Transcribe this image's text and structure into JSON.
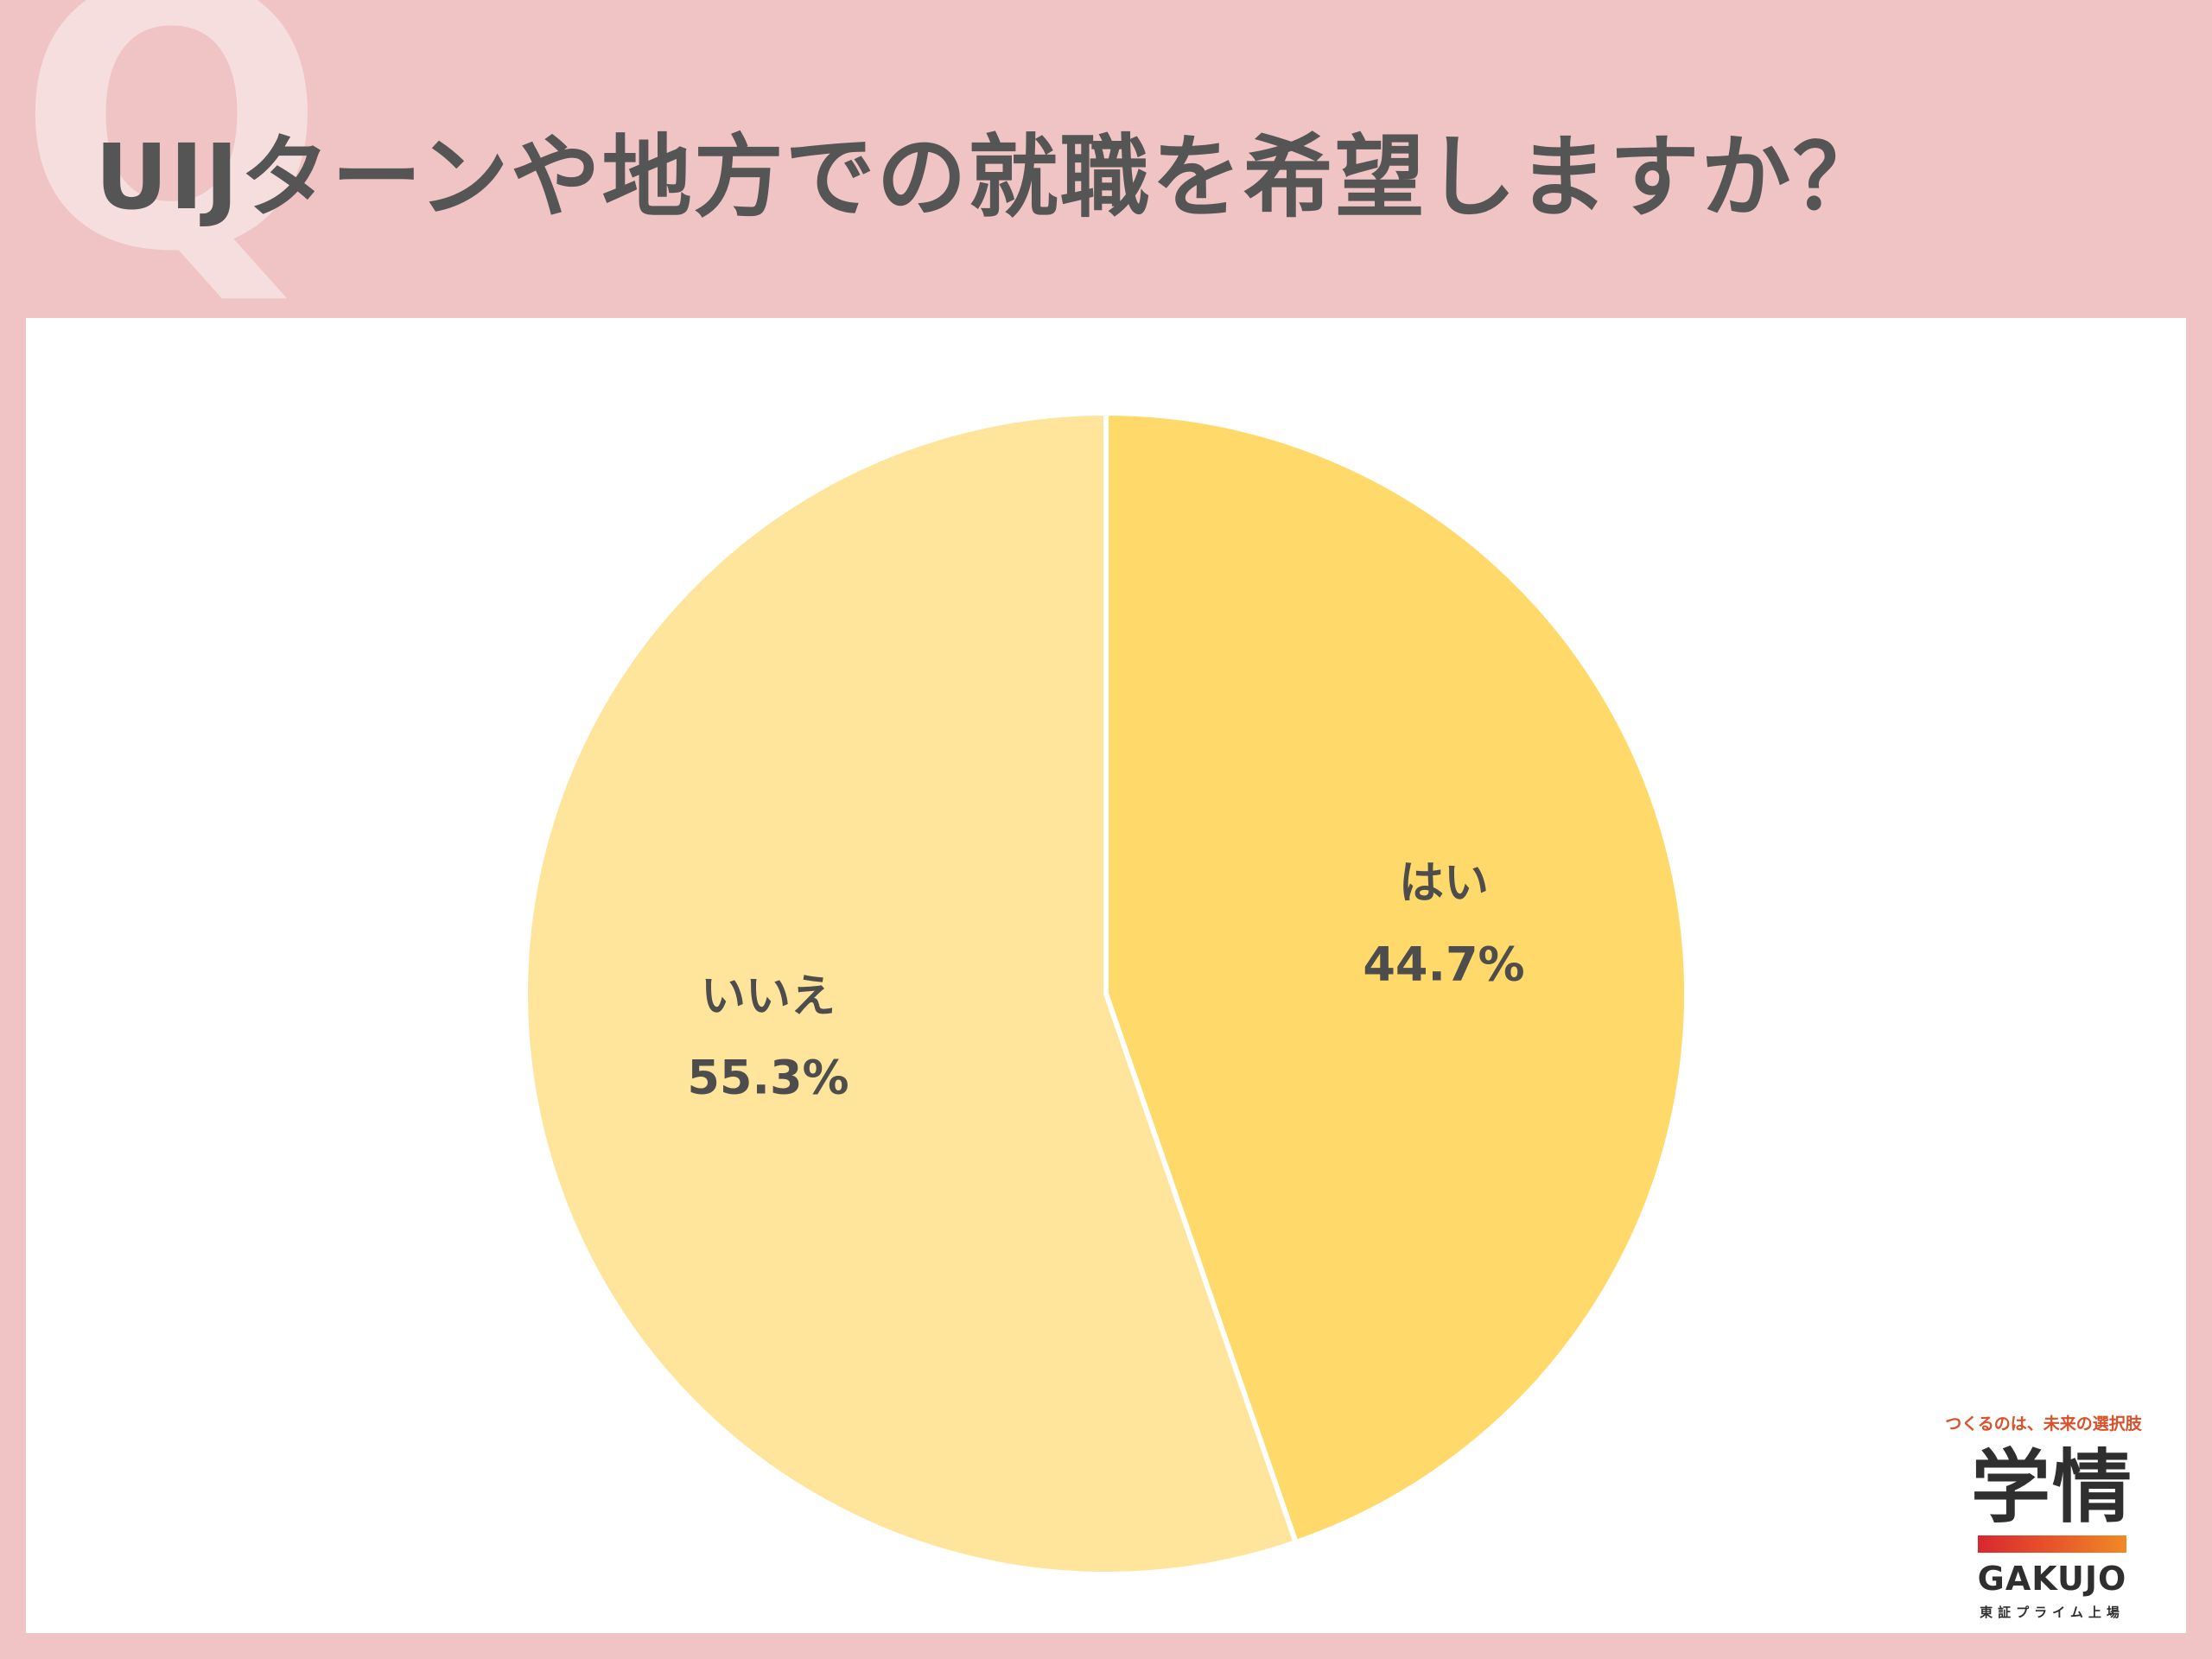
{
  "header": {
    "q_mark": "Q",
    "title": "UIJターンや地方での就職を希望しますか？"
  },
  "chart_data": {
    "type": "pie",
    "title": "UIJターンや地方での就職を希望しますか？",
    "slices": [
      {
        "label": "はい",
        "value": 44.7,
        "value_label": "44.7%",
        "color": "#ffd96a"
      },
      {
        "label": "いいえ",
        "value": 55.3,
        "value_label": "55.3%",
        "color": "#ffe59c"
      }
    ],
    "start_angle": "12 o'clock",
    "direction": "clockwise"
  },
  "logo": {
    "tagline": "つくるのは、未来の選択肢",
    "mark": "学情",
    "name": "GAKUJO",
    "sub": "東証プライム上場"
  }
}
